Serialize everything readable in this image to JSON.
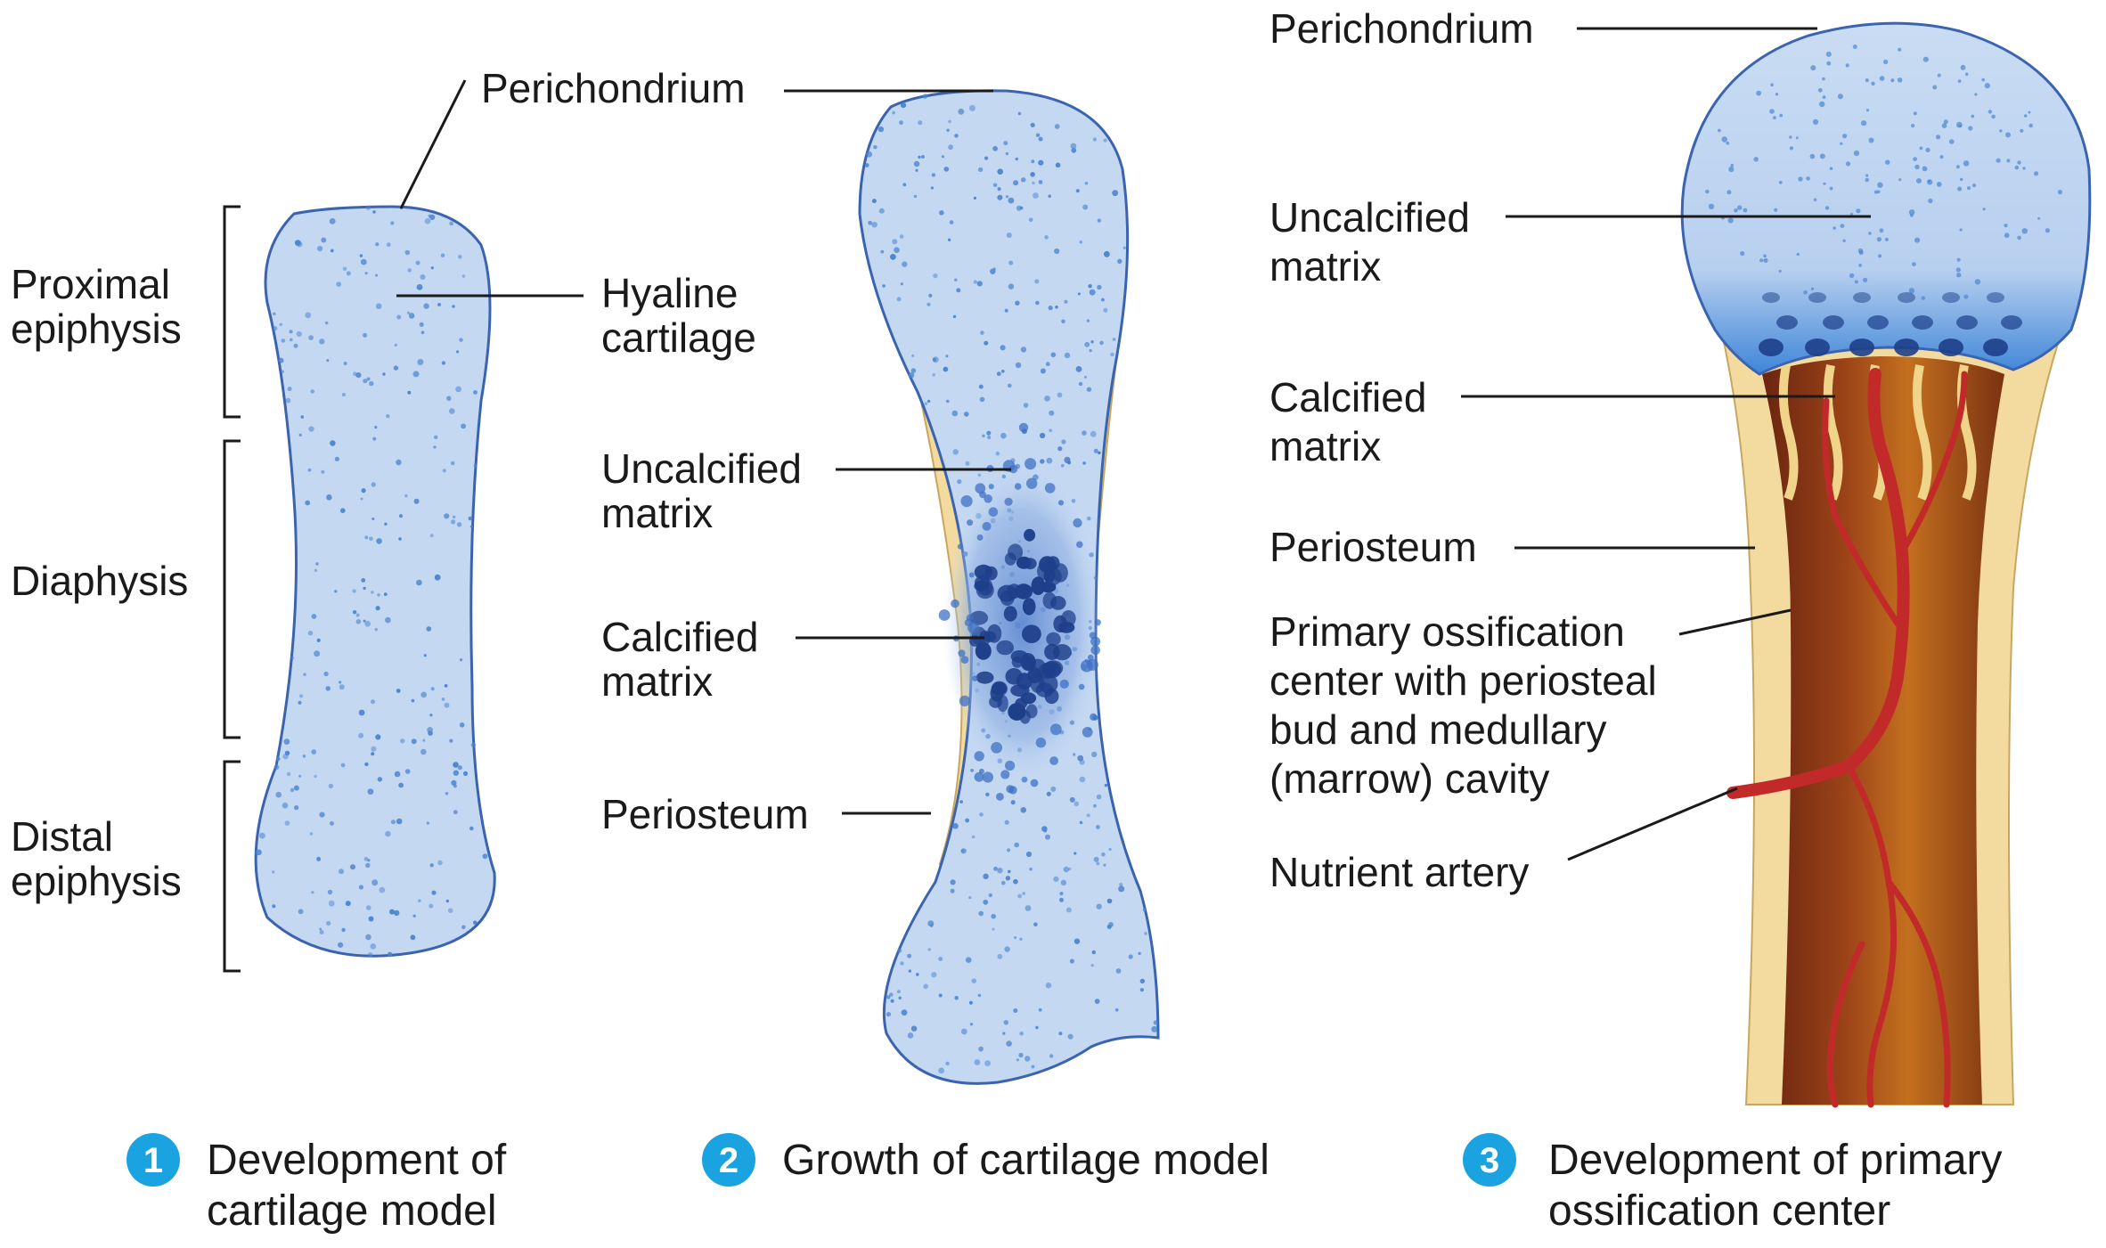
{
  "panel1": {
    "labels": {
      "perichondrium": "Perichondrium",
      "hyaline": [
        "Hyaline",
        "cartilage"
      ],
      "proximal": [
        "Proximal",
        "epiphysis"
      ],
      "diaphysis": "Diaphysis",
      "distal": [
        "Distal",
        "epiphysis"
      ]
    },
    "step": "1",
    "caption": [
      "Development of",
      "cartilage model"
    ]
  },
  "panel2": {
    "labels": {
      "perichondrium": "Perichondrium",
      "uncalcified": [
        "Uncalcified",
        "matrix"
      ],
      "calcified": [
        "Calcified",
        "matrix"
      ],
      "periosteum": "Periosteum"
    },
    "step": "2",
    "caption": [
      "Growth of cartilage model"
    ]
  },
  "panel3": {
    "labels": {
      "perichondrium": "Perichondrium",
      "uncalcified": [
        "Uncalcified",
        "matrix"
      ],
      "calcified": [
        "Calcified",
        "matrix"
      ],
      "periosteum": "Periosteum",
      "primary": [
        "Primary ossification",
        "center with periosteal",
        "bud and medullary",
        "(marrow) cavity"
      ],
      "nutrient": "Nutrient artery"
    },
    "step": "3",
    "caption": [
      "Development of primary",
      "ossification center"
    ]
  },
  "colors": {
    "cartilage": "#c4d8f2",
    "outline": "#3a64b0",
    "dots": "#4d86d0",
    "calcified": "#1e3f8a",
    "periosteum": "#f3dba0",
    "marrow": "#8a3a18",
    "artery": "#c22a2a",
    "badge": "#1aa3e0"
  }
}
